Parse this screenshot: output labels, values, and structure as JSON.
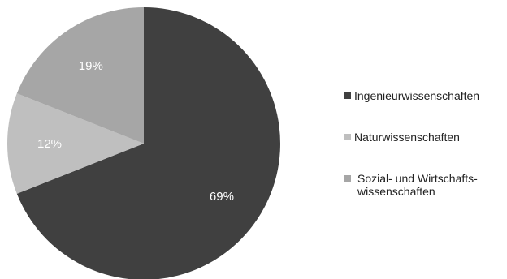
{
  "chart_data": {
    "type": "pie",
    "categories": [
      "Ingenieurwissenschaften",
      "Naturwissenschaften",
      "Sozial- und Wirtschafts-\nwissenschaften"
    ],
    "values": [
      69,
      12,
      19
    ],
    "labels": [
      "69%",
      "12%",
      "19%"
    ],
    "colors": [
      "#404040",
      "#bfbfbf",
      "#a6a6a6"
    ],
    "start_angle_deg": 0,
    "direction": "clockwise",
    "legend_position": "right"
  }
}
